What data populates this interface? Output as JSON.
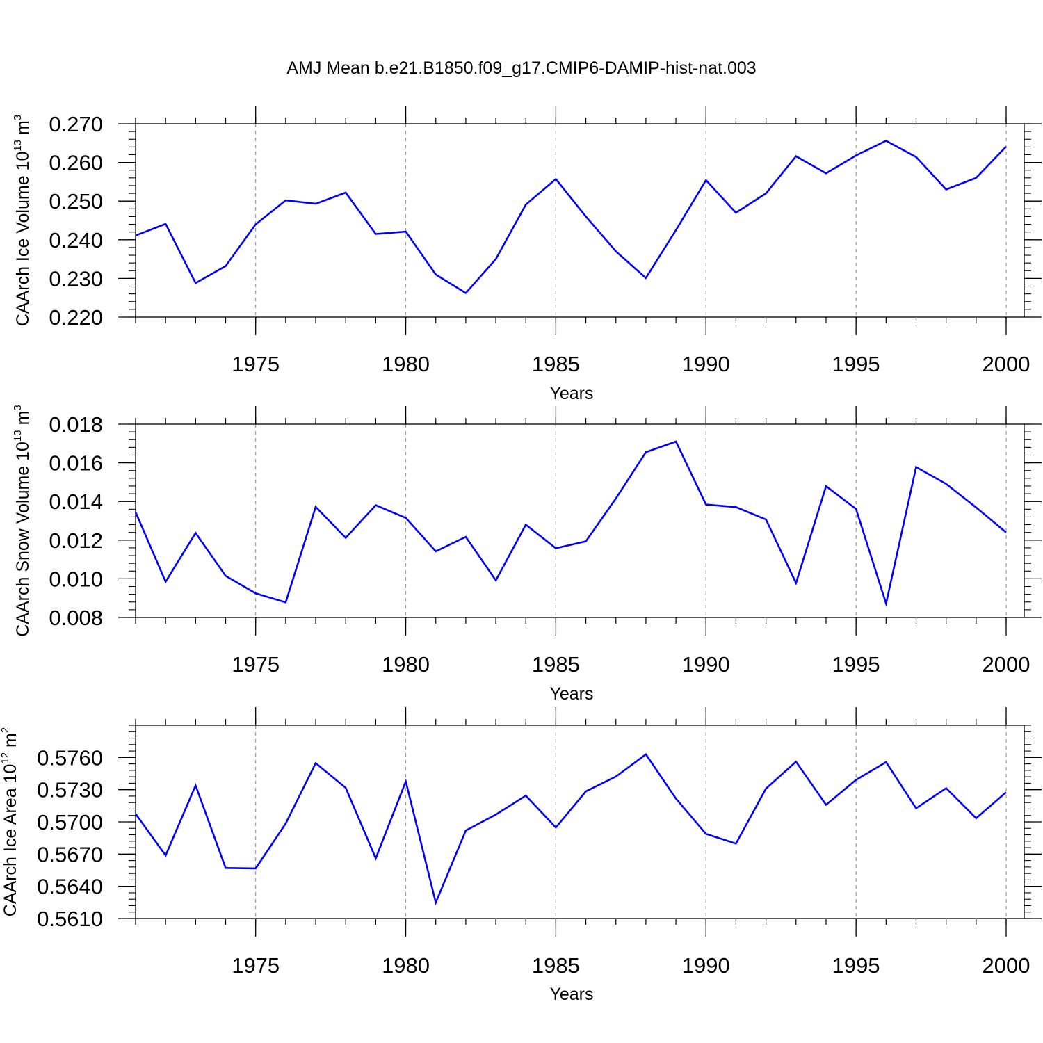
{
  "title": "AMJ Mean b.e21.B1850.f09_g17.CMIP6-DAMIP-hist-nat.003",
  "colors": {
    "line": "#0000ff",
    "axis": "#000000",
    "grid": "#999999"
  },
  "chart_data": [
    {
      "type": "line",
      "xlabel": "Years",
      "ylabel_main": "CAArch Ice Volume 10",
      "ylabel_exp": "13",
      "ylabel_unit": " m",
      "ylabel_unit_exp": "3",
      "xlim": [
        1971,
        2000
      ],
      "ylim": [
        0.22,
        0.27
      ],
      "yticks": [
        0.22,
        0.23,
        0.24,
        0.25,
        0.26,
        0.27
      ],
      "ytick_labels": [
        "0.220",
        "0.230",
        "0.240",
        "0.250",
        "0.260",
        "0.270"
      ],
      "xticks": [
        1975,
        1980,
        1985,
        1990,
        1995,
        2000
      ],
      "xtick_labels": [
        "1975",
        "1980",
        "1985",
        "1990",
        "1995",
        "2000"
      ],
      "x": [
        1971,
        1972,
        1973,
        1974,
        1975,
        1976,
        1977,
        1978,
        1979,
        1980,
        1981,
        1982,
        1983,
        1984,
        1985,
        1986,
        1987,
        1988,
        1989,
        1990,
        1991,
        1992,
        1993,
        1994,
        1995,
        1996,
        1997,
        1998,
        1999,
        2000
      ],
      "values": [
        0.2411,
        0.2441,
        0.2288,
        0.2332,
        0.244,
        0.2502,
        0.2493,
        0.2522,
        0.2415,
        0.2421,
        0.231,
        0.2262,
        0.235,
        0.2491,
        0.2557,
        0.246,
        0.237,
        0.2301,
        0.2425,
        0.2554,
        0.247,
        0.252,
        0.2616,
        0.2572,
        0.2618,
        0.2656,
        0.2614,
        0.253,
        0.256,
        0.2641
      ]
    },
    {
      "type": "line",
      "xlabel": "Years",
      "ylabel_main": "CAArch Snow Volume 10",
      "ylabel_exp": "13",
      "ylabel_unit": " m",
      "ylabel_unit_exp": "3",
      "xlim": [
        1971,
        2000
      ],
      "ylim": [
        0.008,
        0.018
      ],
      "yticks": [
        0.008,
        0.01,
        0.012,
        0.014,
        0.016,
        0.018
      ],
      "ytick_labels": [
        "0.008",
        "0.010",
        "0.012",
        "0.014",
        "0.016",
        "0.018"
      ],
      "xticks": [
        1975,
        1980,
        1985,
        1990,
        1995,
        2000
      ],
      "xtick_labels": [
        "1975",
        "1980",
        "1985",
        "1990",
        "1995",
        "2000"
      ],
      "x": [
        1971,
        1972,
        1973,
        1974,
        1975,
        1976,
        1977,
        1978,
        1979,
        1980,
        1981,
        1982,
        1983,
        1984,
        1985,
        1986,
        1987,
        1988,
        1989,
        1990,
        1991,
        1992,
        1993,
        1994,
        1995,
        1996,
        1997,
        1998,
        1999,
        2000
      ],
      "values": [
        0.01345,
        0.00985,
        0.01237,
        0.01015,
        0.00925,
        0.00878,
        0.01372,
        0.01212,
        0.01381,
        0.01315,
        0.01142,
        0.01217,
        0.00992,
        0.0128,
        0.01158,
        0.01194,
        0.01416,
        0.01655,
        0.0171,
        0.01384,
        0.01371,
        0.01307,
        0.00978,
        0.01479,
        0.01361,
        0.00872,
        0.01578,
        0.01491,
        0.01369,
        0.0124
      ]
    },
    {
      "type": "line",
      "xlabel": "Years",
      "ylabel_main": "CAArch Ice Area 10",
      "ylabel_exp": "12",
      "ylabel_unit": " m",
      "ylabel_unit_exp": "2",
      "xlim": [
        1971,
        2000
      ],
      "ylim": [
        0.561,
        0.579
      ],
      "yticks": [
        0.561,
        0.564,
        0.567,
        0.57,
        0.573,
        0.576
      ],
      "ytick_labels": [
        "0.5610",
        "0.5640",
        "0.5670",
        "0.5700",
        "0.5730",
        "0.5760"
      ],
      "xticks": [
        1975,
        1980,
        1985,
        1990,
        1995,
        2000
      ],
      "xtick_labels": [
        "1975",
        "1980",
        "1985",
        "1990",
        "1995",
        "2000"
      ],
      "x": [
        1971,
        1972,
        1973,
        1974,
        1975,
        1976,
        1977,
        1978,
        1979,
        1980,
        1981,
        1982,
        1983,
        1984,
        1985,
        1986,
        1987,
        1988,
        1989,
        1990,
        1991,
        1992,
        1993,
        1994,
        1995,
        1996,
        1997,
        1998,
        1999,
        2000
      ],
      "values": [
        0.57075,
        0.56688,
        0.57339,
        0.56571,
        0.56567,
        0.56985,
        0.57547,
        0.57317,
        0.56661,
        0.57377,
        0.56249,
        0.5692,
        0.57068,
        0.57245,
        0.56947,
        0.57284,
        0.57422,
        0.57629,
        0.57217,
        0.56888,
        0.56798,
        0.5731,
        0.57561,
        0.57159,
        0.57391,
        0.57557,
        0.57127,
        0.57314,
        0.57034,
        0.57276
      ]
    }
  ]
}
